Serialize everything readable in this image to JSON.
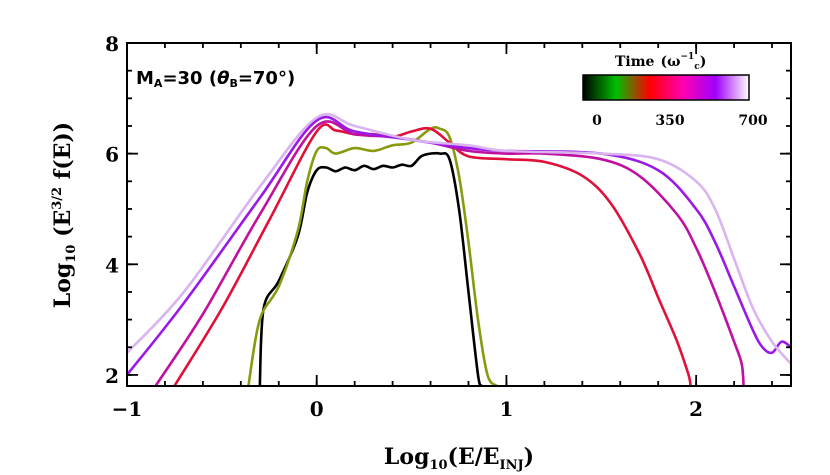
{
  "chart_data": {
    "type": "line",
    "title": "",
    "annotation": "M_A=30 (θ_B=70°)",
    "annotation_parts": {
      "main": "M",
      "main_sub": "A",
      "main_rest": "=30  (",
      "theta": "θ",
      "theta_sub": "B",
      "theta_rest": "=70°)"
    },
    "xlabel_parts": {
      "prefix": "Log",
      "prefix_sub": "10",
      "body": "(E/E",
      "body_sub": "INJ",
      "suffix": ")"
    },
    "ylabel_parts": {
      "prefix": "Log",
      "prefix_sub": "10",
      "body1": " (E",
      "body_sup": "3/2",
      "body2": " f(E))"
    },
    "xlim": [
      -1,
      2.5
    ],
    "ylim": [
      1.8,
      8
    ],
    "xticks": [
      -1,
      0,
      1,
      2
    ],
    "xtick_labels": [
      "−1",
      "0",
      "1",
      "2"
    ],
    "yticks": [
      2,
      4,
      6,
      8
    ],
    "ytick_labels": [
      "2",
      "4",
      "6",
      "8"
    ],
    "colorbar": {
      "title": "Time",
      "unit_parts": {
        "base": "(ω",
        "sup": "−1",
        "sub": "c",
        "close": ")"
      },
      "ticks": [
        "0",
        "350",
        "700"
      ],
      "stops": [
        "#000000",
        "#00c000",
        "#ff0000",
        "#ff00b0",
        "#a000ff",
        "#ffffff"
      ]
    },
    "series": [
      {
        "name": "t1",
        "color": "#000000",
        "x": [
          -0.3,
          -0.28,
          -0.2,
          -0.1,
          -0.05,
          0.0,
          0.05,
          0.1,
          0.15,
          0.2,
          0.25,
          0.3,
          0.35,
          0.4,
          0.45,
          0.5,
          0.55,
          0.6,
          0.65,
          0.7,
          0.75,
          0.8,
          0.85,
          0.87
        ],
        "y": [
          1.8,
          3.2,
          3.7,
          4.5,
          5.3,
          5.7,
          5.75,
          5.68,
          5.75,
          5.7,
          5.78,
          5.72,
          5.78,
          5.75,
          5.8,
          5.78,
          5.95,
          6.0,
          6.0,
          5.9,
          5.0,
          3.5,
          2.0,
          1.8
        ]
      },
      {
        "name": "t2",
        "color": "#8a9a10",
        "x": [
          -0.36,
          -0.3,
          -0.2,
          -0.1,
          -0.05,
          0.0,
          0.05,
          0.1,
          0.2,
          0.3,
          0.4,
          0.5,
          0.6,
          0.65,
          0.7,
          0.75,
          0.8,
          0.85,
          0.9,
          0.95
        ],
        "y": [
          1.8,
          3.0,
          3.6,
          4.6,
          5.5,
          6.05,
          6.1,
          6.0,
          6.1,
          6.05,
          6.15,
          6.2,
          6.45,
          6.45,
          6.3,
          5.6,
          4.4,
          3.0,
          2.0,
          1.8
        ]
      },
      {
        "name": "t3",
        "color": "#e0103a",
        "x": [
          -0.75,
          -0.5,
          -0.25,
          0.0,
          0.1,
          0.2,
          0.3,
          0.4,
          0.5,
          0.6,
          0.7,
          0.8,
          1.0,
          1.2,
          1.4,
          1.55,
          1.7,
          1.8,
          1.9,
          1.96,
          1.97
        ],
        "y": [
          1.8,
          3.2,
          4.8,
          6.4,
          6.42,
          6.35,
          6.35,
          6.3,
          6.4,
          6.45,
          6.2,
          5.95,
          5.9,
          5.85,
          5.6,
          5.1,
          4.2,
          3.4,
          2.6,
          2.0,
          1.8
        ]
      },
      {
        "name": "t4",
        "color": "#c010a0",
        "x": [
          -0.85,
          -0.6,
          -0.3,
          0.0,
          0.2,
          0.4,
          0.6,
          0.8,
          1.0,
          1.2,
          1.5,
          1.7,
          1.9,
          2.0,
          2.1,
          2.2,
          2.24,
          2.25
        ],
        "y": [
          1.8,
          3.1,
          4.9,
          6.5,
          6.35,
          6.3,
          6.2,
          6.05,
          6.0,
          6.0,
          5.9,
          5.6,
          4.9,
          4.3,
          3.5,
          2.6,
          2.2,
          1.8
        ]
      },
      {
        "name": "t5",
        "color": "#9a18e8",
        "x": [
          -1.0,
          -0.7,
          -0.3,
          0.0,
          0.2,
          0.5,
          0.8,
          1.0,
          1.5,
          1.8,
          2.0,
          2.1,
          2.2,
          2.3,
          2.35,
          2.4,
          2.45,
          2.5
        ],
        "y": [
          2.0,
          3.3,
          5.2,
          6.6,
          6.4,
          6.25,
          6.1,
          6.05,
          6.0,
          5.7,
          5.0,
          4.4,
          3.6,
          2.8,
          2.5,
          2.4,
          2.6,
          2.5
        ]
      },
      {
        "name": "t6",
        "color": "#d9b4ef",
        "x": [
          -1.0,
          -0.7,
          -0.3,
          0.0,
          0.2,
          0.5,
          0.8,
          1.0,
          1.5,
          1.8,
          2.0,
          2.1,
          2.2,
          2.3,
          2.4,
          2.5
        ],
        "y": [
          2.4,
          3.5,
          5.4,
          6.65,
          6.5,
          6.25,
          6.15,
          6.05,
          6.0,
          5.9,
          5.5,
          5.0,
          4.1,
          3.2,
          2.6,
          2.2
        ]
      }
    ]
  }
}
